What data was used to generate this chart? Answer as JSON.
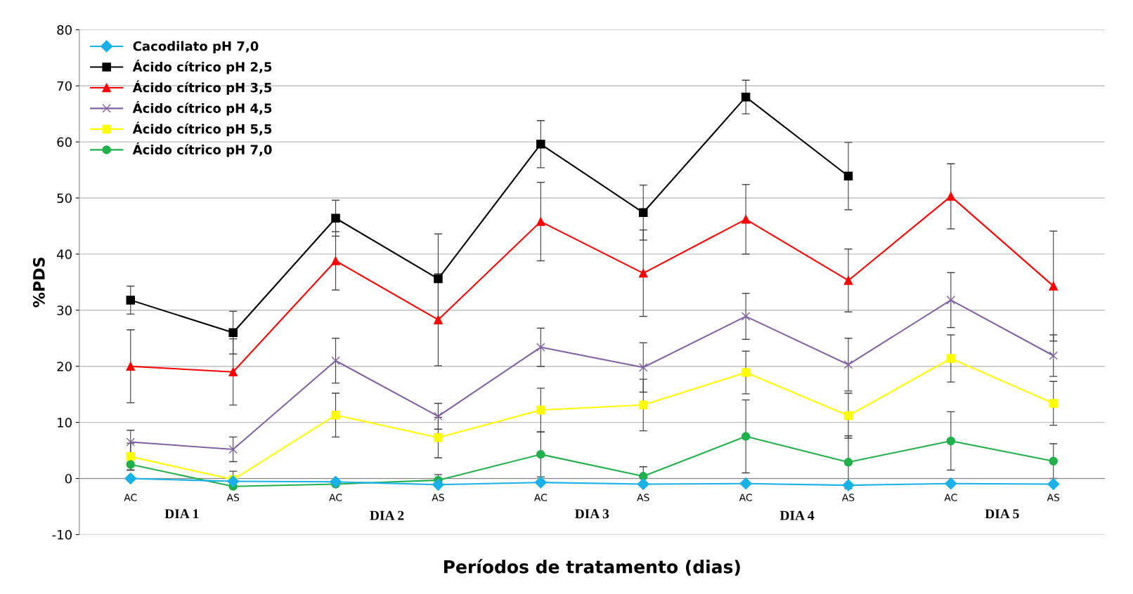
{
  "chart_data": {
    "type": "line",
    "xlabel": "Períodos de tratamento (dias)",
    "ylabel": "%PDS",
    "categories": [
      "AC",
      "AS",
      "AC",
      "AS",
      "AC",
      "AS",
      "AC",
      "AS",
      "AC",
      "AS"
    ],
    "ylim": [
      -10,
      80
    ],
    "yticks": [
      -10,
      0,
      10,
      20,
      30,
      40,
      50,
      60,
      70,
      80
    ],
    "grid": "y",
    "legend": "top left",
    "annotations": [
      "DIA 1",
      "DIA 2",
      "DIA 3",
      "DIA 4",
      "DIA 5"
    ],
    "series": [
      {
        "name": "Cacodilato pH 7,0",
        "color": "#1ab0e8",
        "marker": "diamond",
        "values": [
          0,
          -0.5,
          -0.6,
          -1.1,
          -0.7,
          -1.0,
          -0.9,
          -1.2,
          -0.9,
          -1.0
        ]
      },
      {
        "name": "Ácido cítrico pH 2,5",
        "color": "#000000",
        "marker": "square",
        "values": [
          31.8,
          26,
          46.4,
          35.6,
          59.6,
          47.4,
          68,
          53.9,
          null,
          null
        ],
        "errors": [
          2.5,
          3.8,
          3.2,
          8,
          4.2,
          4.9,
          3,
          6,
          null,
          null
        ]
      },
      {
        "name": "Ácido cítrico pH 3,5",
        "color": "#ff0000",
        "marker": "triangle",
        "values": [
          20,
          19,
          38.8,
          28.3,
          45.8,
          36.6,
          46.2,
          35.3,
          50.3,
          34.3
        ],
        "errors": [
          6.5,
          5.9,
          5.2,
          8.2,
          7,
          7.7,
          6.2,
          5.6,
          5.8,
          9.8
        ]
      },
      {
        "name": "Ácido cítrico pH 4,5",
        "color": "#8064a2",
        "marker": "cross",
        "values": [
          6.5,
          5.2,
          21,
          11.1,
          23.4,
          19.8,
          28.9,
          20.3,
          31.8,
          21.9
        ],
        "errors": [
          2.1,
          2.2,
          4,
          2.3,
          3.4,
          4.4,
          4.1,
          4.7,
          4.9,
          3.7
        ]
      },
      {
        "name": "Ácido cítrico pH 5,5",
        "color": "#ffff00",
        "marker": "square",
        "values": [
          3.9,
          -0.2,
          11.3,
          7.3,
          12.2,
          13.1,
          18.9,
          11.2,
          21.4,
          13.4
        ],
        "errors": [
          2.4,
          1.5,
          3.9,
          3.6,
          3.9,
          4.6,
          3.8,
          4,
          4.2,
          3.9
        ]
      },
      {
        "name": "Ácido cítrico pH 7,0",
        "color": "#22b04c",
        "marker": "circle",
        "values": [
          2.5,
          -1.4,
          -1.0,
          -0.3,
          4.3,
          0.4,
          7.5,
          2.9,
          6.7,
          3.1
        ],
        "errors": [
          1,
          null,
          null,
          1,
          4,
          1.7,
          6.5,
          4.7,
          5.2,
          3.1
        ]
      }
    ]
  }
}
